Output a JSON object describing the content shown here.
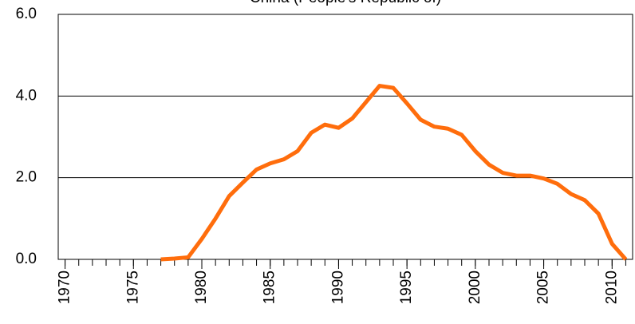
{
  "chart_data": {
    "type": "line",
    "title": "China (People's Republic of)",
    "x": [
      1977,
      1978,
      1979,
      1980,
      1981,
      1982,
      1983,
      1984,
      1985,
      1986,
      1987,
      1988,
      1989,
      1990,
      1991,
      1992,
      1993,
      1994,
      1995,
      1996,
      1997,
      1998,
      1999,
      2000,
      2001,
      2002,
      2003,
      2004,
      2005,
      2006,
      2007,
      2008,
      2009,
      2010,
      2011
    ],
    "series": [
      {
        "name": "China (People's Republic of)",
        "color": "#ff6d0c",
        "values": [
          0.0,
          0.02,
          0.05,
          0.5,
          1.0,
          1.55,
          1.88,
          2.2,
          2.35,
          2.45,
          2.65,
          3.1,
          3.3,
          3.22,
          3.45,
          3.85,
          4.25,
          4.2,
          3.82,
          3.42,
          3.25,
          3.2,
          3.05,
          2.65,
          2.32,
          2.12,
          2.05,
          2.05,
          1.98,
          1.85,
          1.6,
          1.45,
          1.12,
          0.38,
          0.0
        ]
      }
    ],
    "xlim": [
      1969.5,
      2011.5
    ],
    "xticks": [
      1970,
      1975,
      1980,
      1985,
      1990,
      1995,
      2000,
      2005,
      2010
    ],
    "xminor_ticks": [
      1970,
      1971,
      1972,
      1973,
      1974,
      1975,
      1976,
      1977,
      1978,
      1979,
      1980,
      1981,
      1982,
      1983,
      1984,
      1985,
      1986,
      1987,
      1988,
      1989,
      1990,
      1991,
      1992,
      1993,
      1994,
      1995,
      1996,
      1997,
      1998,
      1999,
      2000,
      2001,
      2002,
      2003,
      2004,
      2005,
      2006,
      2007,
      2008,
      2009,
      2010,
      2011
    ],
    "ylim": [
      0,
      6
    ],
    "yticks": [
      {
        "value": 0,
        "label": "0.0"
      },
      {
        "value": 2,
        "label": "2.0"
      },
      {
        "value": 4,
        "label": "4.0"
      },
      {
        "value": 6,
        "label": "6.0"
      }
    ],
    "grid": true
  }
}
